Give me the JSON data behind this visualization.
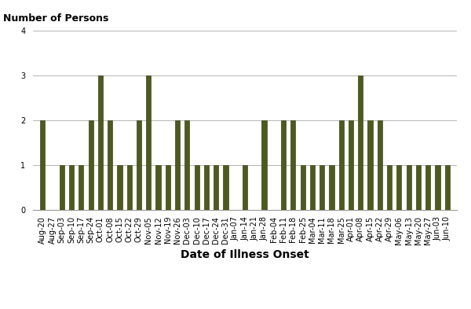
{
  "categories": [
    "Aug-20",
    "Aug-27",
    "Sep-03",
    "Sep-10",
    "Sep-17",
    "Sep-24",
    "Oct-01",
    "Oct-08",
    "Oct-15",
    "Oct-22",
    "Oct-29",
    "Nov-05",
    "Nov-12",
    "Nov-19",
    "Nov-26",
    "Dec-03",
    "Dec-10",
    "Dec-17",
    "Dec-24",
    "Dec-31",
    "Jan-07",
    "Jan-14",
    "Jan-21",
    "Jan-28",
    "Feb-04",
    "Feb-11",
    "Feb-18",
    "Feb-25",
    "Mar-04",
    "Mar-11",
    "Mar-18",
    "Mar-25",
    "Apr-01",
    "Apr-08",
    "Apr-15",
    "Apr-22",
    "Apr-29",
    "May-06",
    "May-13",
    "May-20",
    "May-27",
    "Jun-03",
    "Jun-10"
  ],
  "values": [
    2,
    0,
    1,
    1,
    1,
    2,
    3,
    2,
    1,
    1,
    2,
    3,
    1,
    1,
    2,
    2,
    1,
    1,
    1,
    1,
    0,
    1,
    0,
    2,
    0,
    2,
    2,
    1,
    1,
    1,
    1,
    2,
    2,
    3,
    2,
    2,
    1,
    1,
    1,
    1,
    1,
    1,
    1
  ],
  "bar_color": "#4d5a1e",
  "bar_edge_color": "#3a4418",
  "ylabel": "Number of Persons",
  "xlabel": "Date of Illness Onset",
  "ylim": [
    0,
    4
  ],
  "yticks": [
    0,
    1,
    2,
    3,
    4
  ],
  "grid_color": "#aaaaaa",
  "bg_color": "#ffffff",
  "ylabel_fontsize": 9,
  "xlabel_fontsize": 10,
  "tick_fontsize": 7,
  "bar_width": 0.5
}
